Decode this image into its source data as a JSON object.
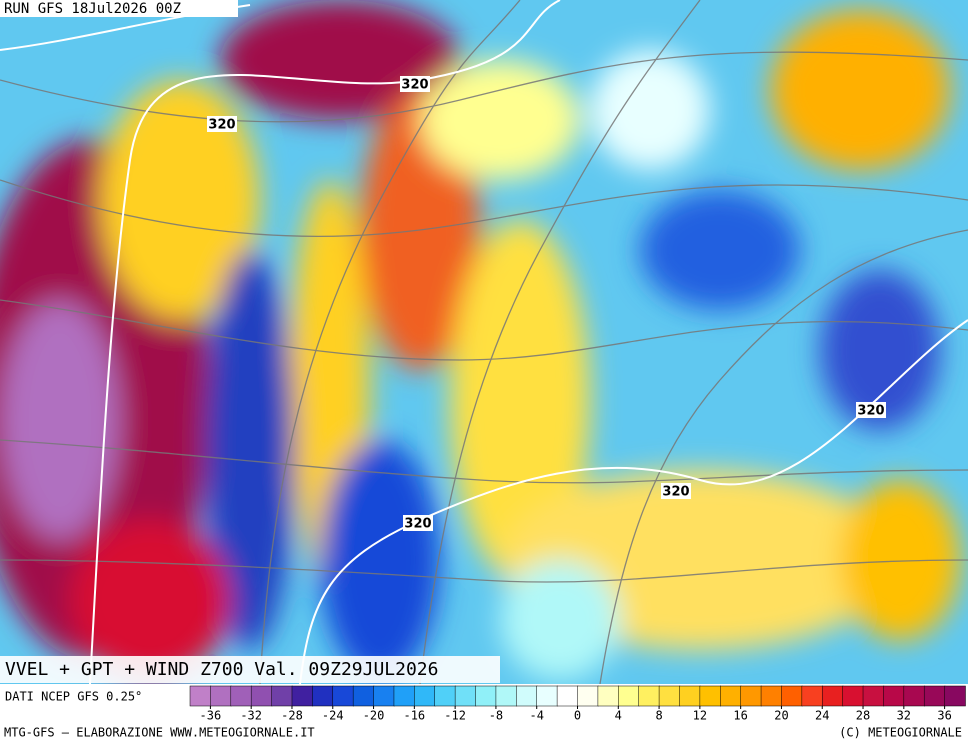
{
  "header": {
    "run": "RUN GFS 18Jul2026 00Z"
  },
  "map": {
    "product": "VVEL + GPT + WIND Z700 Val. 09Z29JUL2026",
    "contour_labels": [
      320,
      320,
      320,
      320,
      320
    ]
  },
  "colorbar": {
    "source": "DATI NCEP GFS 0.25°",
    "range": [
      -38,
      38
    ],
    "ticks": [
      -36,
      -32,
      -28,
      -24,
      -20,
      -16,
      -12,
      -8,
      -4,
      0,
      4,
      8,
      12,
      16,
      20,
      24,
      28,
      32,
      36
    ],
    "colors": [
      "#c080c8",
      "#b070c0",
      "#a060b8",
      "#9050b0",
      "#7040a8",
      "#4020a0",
      "#2030c0",
      "#1848d8",
      "#1060e0",
      "#1880f0",
      "#20a0f8",
      "#30b8f8",
      "#50d0f8",
      "#70e0f8",
      "#90f0f8",
      "#b0f8f8",
      "#d0fcfc",
      "#e8ffff",
      "#ffffff",
      "#fffff0",
      "#ffffc0",
      "#ffff90",
      "#fff060",
      "#ffe040",
      "#ffd020",
      "#ffc000",
      "#ffb000",
      "#ff9800",
      "#ff8000",
      "#ff6000",
      "#f84020",
      "#e82020",
      "#d81030",
      "#c81040",
      "#b80848",
      "#a80850",
      "#980858",
      "#880860"
    ]
  },
  "footer": {
    "left": "MTG-GFS — ELABORAZIONE WWW.METEOGIORNALE.IT",
    "right": "(C) METEOGIORNALE"
  }
}
